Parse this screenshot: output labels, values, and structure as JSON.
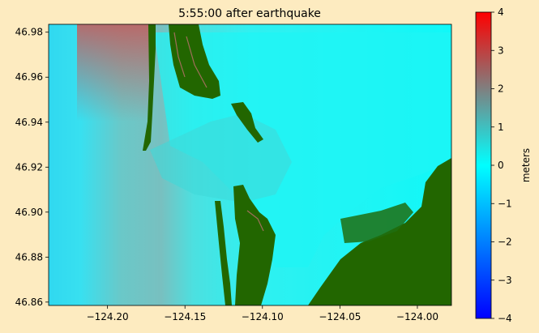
{
  "chart_data": {
    "type": "heatmap",
    "title": "5:55:00 after earthquake",
    "xlim": [
      -124.238,
      -123.978
    ],
    "ylim": [
      46.8585,
      46.9835
    ],
    "x_ticks": [
      -124.2,
      -124.15,
      -124.1,
      -124.05,
      -124.0
    ],
    "x_tick_labels": [
      "−124.20",
      "−124.15",
      "−124.10",
      "−124.05",
      "−124.00"
    ],
    "y_ticks": [
      46.86,
      46.88,
      46.9,
      46.92,
      46.94,
      46.96,
      46.98
    ],
    "y_tick_labels": [
      "46.86",
      "46.88",
      "46.90",
      "46.92",
      "46.94",
      "46.96",
      "46.98"
    ],
    "colorbar": {
      "label": "meters",
      "range": [
        -4,
        4
      ],
      "ticks": [
        -4,
        -3,
        -2,
        -1,
        0,
        1,
        2,
        3,
        4
      ],
      "tick_labels": [
        "−4",
        "−3",
        "−2",
        "−1",
        "0",
        "1",
        "2",
        "3",
        "4"
      ],
      "colors": [
        "#0000ff",
        "#00ffff",
        "#ff0000"
      ]
    },
    "land_color": "#226600"
  }
}
